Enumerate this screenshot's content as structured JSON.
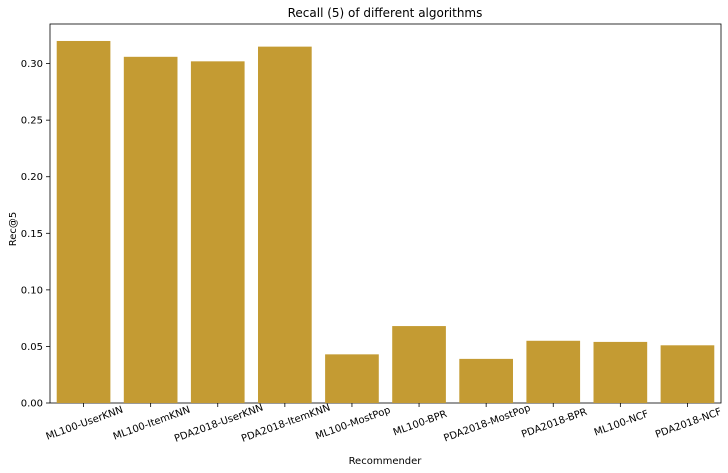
{
  "chart_data": {
    "type": "bar",
    "title": "Recall (5) of different algorithms",
    "xlabel": "Recommender",
    "ylabel": "Rec@5",
    "categories": [
      "ML100-UserKNN",
      "ML100-ItemKNN",
      "PDA2018-UserKNN",
      "PDA2018-ItemKNN",
      "ML100-MostPop",
      "ML100-BPR",
      "PDA2018-MostPop",
      "PDA2018-BPR",
      "ML100-NCF",
      "PDA2018-NCF"
    ],
    "values": [
      0.32,
      0.306,
      0.302,
      0.315,
      0.043,
      0.068,
      0.039,
      0.055,
      0.054,
      0.051
    ],
    "ylim": [
      0,
      0.335
    ],
    "yticks": [
      0.0,
      0.05,
      0.1,
      0.15,
      0.2,
      0.25,
      0.3
    ],
    "ytick_labels": [
      "0.00",
      "0.05",
      "0.10",
      "0.15",
      "0.20",
      "0.25",
      "0.30"
    ],
    "bar_color": "#c49b33",
    "grid": false,
    "xtick_rotation_deg": -20
  }
}
